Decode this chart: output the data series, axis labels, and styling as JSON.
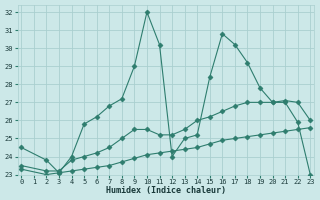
{
  "xlabel": "Humidex (Indice chaleur)",
  "bg_color": "#cce8e8",
  "grid_color": "#aacfcf",
  "line_color": "#2e7d6e",
  "xlim": [
    -0.3,
    23.3
  ],
  "ylim": [
    23,
    32.4
  ],
  "xticks": [
    0,
    1,
    2,
    3,
    4,
    5,
    6,
    7,
    8,
    9,
    10,
    11,
    12,
    13,
    14,
    15,
    16,
    17,
    18,
    19,
    20,
    21,
    22,
    23
  ],
  "yticks": [
    23,
    24,
    25,
    26,
    27,
    28,
    29,
    30,
    31,
    32
  ],
  "series1_x": [
    0,
    2,
    3,
    4,
    5,
    6,
    7,
    8,
    9,
    10,
    11,
    12,
    13,
    14,
    15,
    16,
    17,
    18,
    19,
    20,
    21,
    22,
    23
  ],
  "series1_y": [
    24.5,
    23.8,
    23.1,
    24.0,
    25.8,
    26.2,
    26.8,
    27.2,
    29.0,
    32.0,
    30.2,
    24.0,
    25.0,
    25.2,
    28.4,
    30.8,
    30.2,
    29.2,
    27.8,
    27.0,
    27.1,
    27.0,
    26.0
  ],
  "series2_x": [
    0,
    2,
    3,
    4,
    5,
    6,
    7,
    8,
    9,
    10,
    11,
    12,
    13,
    14,
    15,
    16,
    17,
    18,
    19,
    20,
    21,
    22,
    23
  ],
  "series2_y": [
    23.5,
    23.2,
    23.2,
    23.8,
    24.0,
    24.2,
    24.5,
    25.0,
    25.5,
    25.5,
    25.2,
    25.2,
    25.5,
    26.0,
    26.2,
    26.5,
    26.8,
    27.0,
    27.0,
    27.0,
    27.0,
    25.9,
    23.0
  ],
  "series3_x": [
    0,
    2,
    3,
    4,
    5,
    6,
    7,
    8,
    9,
    10,
    11,
    12,
    13,
    14,
    15,
    16,
    17,
    18,
    19,
    20,
    21,
    22,
    23
  ],
  "series3_y": [
    23.3,
    23.0,
    23.1,
    23.2,
    23.3,
    23.4,
    23.5,
    23.7,
    23.9,
    24.1,
    24.2,
    24.3,
    24.4,
    24.5,
    24.7,
    24.9,
    25.0,
    25.1,
    25.2,
    25.3,
    25.4,
    25.5,
    25.6
  ]
}
